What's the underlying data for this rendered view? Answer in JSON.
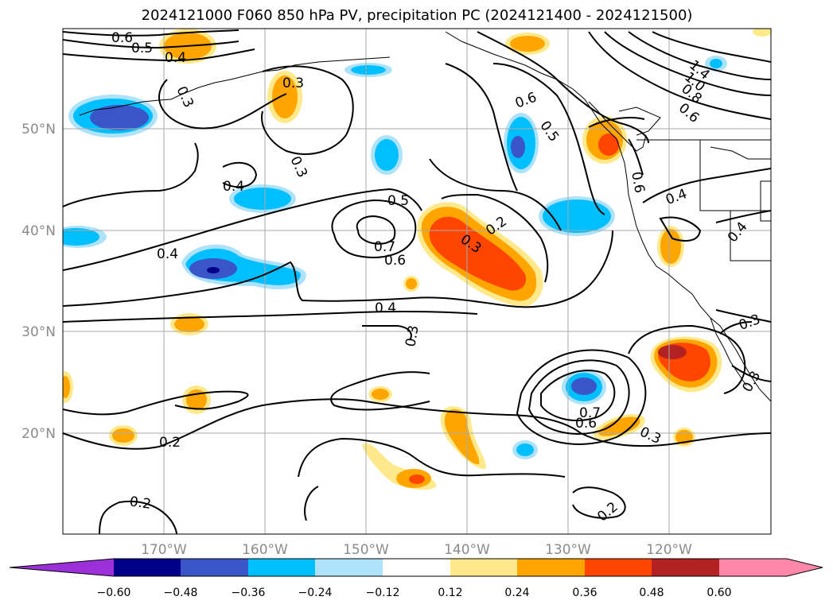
{
  "title": "2024121000 F060 850 hPa PV, precipitation PC (2024121400 - 2024121500)",
  "map": {
    "lon_labels": [
      "170°W",
      "160°W",
      "150°W",
      "140°W",
      "130°W",
      "120°W"
    ],
    "lat_labels": [
      "50°N",
      "40°N",
      "30°N",
      "20°N"
    ],
    "contour_labels": [
      "0.6",
      "0.5",
      "0.4",
      "0.3",
      "0.3",
      "0.3",
      "0.4",
      "0.4",
      "0.5",
      "0.7",
      "0.6",
      "0.4",
      "0.3",
      "0.3",
      "0.2",
      "0.2",
      "0.6",
      "0.5",
      "0.6",
      "1.4",
      "1.0",
      "0.8",
      "0.6",
      "0.4",
      "0.4",
      "0.3",
      "0.7",
      "0.6",
      "0.3",
      "0.2",
      "0.2",
      "0.3"
    ]
  },
  "colorbar": {
    "ticks": [
      "−0.60",
      "−0.48",
      "−0.36",
      "−0.24",
      "−0.12",
      "0.12",
      "0.24",
      "0.36",
      "0.48",
      "0.60"
    ],
    "colors": [
      "#9b30d9",
      "#00008b",
      "#3a55c8",
      "#00bfff",
      "#aee2fa",
      "#ffffff",
      "#ffe98a",
      "#ffa500",
      "#ff4500",
      "#b22222",
      "#ff88aa"
    ]
  },
  "colors": {
    "lightblue": "#aee2fa",
    "blue": "#00bfff",
    "midblue": "#3a55c8",
    "darkblue": "#00008b",
    "yellow": "#ffe98a",
    "orange": "#ffa500",
    "redorange": "#ff4500",
    "darkred": "#b22222"
  }
}
